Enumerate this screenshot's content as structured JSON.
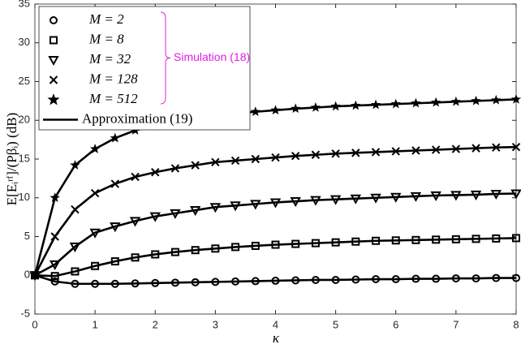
{
  "chart_data": {
    "type": "line",
    "x_label": "κ",
    "y_label": "E[Eᵢʳᶠ]/(Pβᵢ) (dB)",
    "annotation": "Simulation (18)",
    "approximation_label": "Approximation (19)",
    "x": [
      0,
      0.333,
      0.667,
      1,
      1.333,
      1.667,
      2,
      2.333,
      2.667,
      3,
      3.333,
      3.667,
      4,
      4.333,
      4.667,
      5,
      5.333,
      5.667,
      6,
      6.333,
      6.667,
      7,
      7.333,
      7.667,
      8
    ],
    "series": [
      {
        "name": "M = 2",
        "marker": "circle",
        "color": "#000000",
        "values": [
          0,
          -0.8,
          -1.1,
          -1.1,
          -1.1,
          -1.05,
          -1.0,
          -0.95,
          -0.9,
          -0.85,
          -0.8,
          -0.75,
          -0.7,
          -0.65,
          -0.6,
          -0.6,
          -0.55,
          -0.5,
          -0.5,
          -0.45,
          -0.45,
          -0.4,
          -0.4,
          -0.35,
          -0.35
        ]
      },
      {
        "name": "M = 8",
        "marker": "square",
        "color": "#000000",
        "values": [
          0,
          -0.1,
          0.5,
          1.2,
          1.8,
          2.3,
          2.7,
          3.0,
          3.25,
          3.45,
          3.65,
          3.8,
          3.95,
          4.05,
          4.15,
          4.25,
          4.35,
          4.45,
          4.5,
          4.55,
          4.6,
          4.65,
          4.7,
          4.75,
          4.8
        ]
      },
      {
        "name": "M = 32",
        "marker": "triangle",
        "color": "#000000",
        "values": [
          0,
          1.4,
          3.7,
          5.5,
          6.3,
          7.0,
          7.6,
          8.0,
          8.4,
          8.8,
          9.0,
          9.2,
          9.4,
          9.55,
          9.7,
          9.8,
          9.9,
          10.0,
          10.1,
          10.2,
          10.3,
          10.35,
          10.4,
          10.5,
          10.55
        ]
      },
      {
        "name": "M = 128",
        "marker": "cross",
        "color": "#000000",
        "values": [
          0,
          5,
          8.5,
          10.6,
          11.8,
          12.7,
          13.3,
          13.8,
          14.2,
          14.6,
          14.8,
          15.0,
          15.2,
          15.4,
          15.55,
          15.7,
          15.8,
          15.9,
          16.0,
          16.1,
          16.2,
          16.3,
          16.4,
          16.5,
          16.55
        ]
      },
      {
        "name": "M = 512",
        "marker": "star",
        "color": "#000000",
        "values": [
          0,
          10,
          14.2,
          16.3,
          17.7,
          18.7,
          19.3,
          19.8,
          20.3,
          20.6,
          20.9,
          21.1,
          21.3,
          21.5,
          21.65,
          21.8,
          21.9,
          22.0,
          22.1,
          22.2,
          22.3,
          22.4,
          22.5,
          22.6,
          22.7
        ]
      }
    ],
    "xlim": [
      0,
      8
    ],
    "xticks": [
      0,
      1,
      2,
      3,
      4,
      5,
      6,
      7,
      8
    ],
    "ylim": [
      -5,
      35
    ],
    "yticks": [
      -5,
      0,
      5,
      10,
      15,
      20,
      25,
      30,
      35
    ],
    "grid": false,
    "legend": "upper left",
    "annotation_color": "#e020e0"
  }
}
